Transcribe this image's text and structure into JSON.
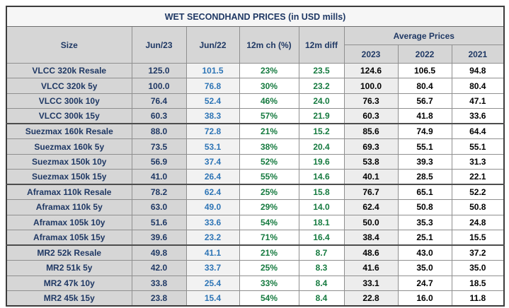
{
  "chart_data": {
    "type": "table",
    "title": "WET SECONDHAND PRICES (in USD mills)",
    "header": {
      "size": "Size",
      "jun23": "Jun/23",
      "jun22": "Jun/22",
      "change_12m": "12m ch (%)",
      "diff_12m": "12m diff",
      "avg_prices_group": "Average Prices",
      "y2023": "2023",
      "y2022": "2022",
      "y2021": "2021"
    },
    "rows": [
      {
        "group": "VLCC",
        "size": "VLCC 320k Resale",
        "jun23": "125.0",
        "jun22": "101.5",
        "ch": "23%",
        "diff": "23.5",
        "a2023": "124.6",
        "a2022": "106.5",
        "a2021": "94.8"
      },
      {
        "group": "VLCC",
        "size": "VLCC 320k 5y",
        "jun23": "100.0",
        "jun22": "76.8",
        "ch": "30%",
        "diff": "23.2",
        "a2023": "100.0",
        "a2022": "80.4",
        "a2021": "80.4"
      },
      {
        "group": "VLCC",
        "size": "VLCC 300k 10y",
        "jun23": "76.4",
        "jun22": "52.4",
        "ch": "46%",
        "diff": "24.0",
        "a2023": "76.3",
        "a2022": "56.7",
        "a2021": "47.1"
      },
      {
        "group": "VLCC",
        "size": "VLCC 300k 15y",
        "jun23": "60.3",
        "jun22": "38.3",
        "ch": "57%",
        "diff": "21.9",
        "a2023": "60.3",
        "a2022": "41.8",
        "a2021": "33.6"
      },
      {
        "group": "Suezmax",
        "size": "Suezmax 160k Resale",
        "jun23": "88.0",
        "jun22": "72.8",
        "ch": "21%",
        "diff": "15.2",
        "a2023": "85.6",
        "a2022": "74.9",
        "a2021": "64.4"
      },
      {
        "group": "Suezmax",
        "size": "Suezmax 160k 5y",
        "jun23": "73.5",
        "jun22": "53.1",
        "ch": "38%",
        "diff": "20.4",
        "a2023": "69.3",
        "a2022": "55.1",
        "a2021": "55.1"
      },
      {
        "group": "Suezmax",
        "size": "Suezmax 150k 10y",
        "jun23": "56.9",
        "jun22": "37.4",
        "ch": "52%",
        "diff": "19.6",
        "a2023": "53.8",
        "a2022": "39.3",
        "a2021": "31.3"
      },
      {
        "group": "Suezmax",
        "size": "Suezmax 150k 15y",
        "jun23": "41.0",
        "jun22": "26.4",
        "ch": "55%",
        "diff": "14.6",
        "a2023": "40.1",
        "a2022": "28.5",
        "a2021": "22.1"
      },
      {
        "group": "Aframax",
        "size": "Aframax 110k Resale",
        "jun23": "78.2",
        "jun22": "62.4",
        "ch": "25%",
        "diff": "15.8",
        "a2023": "76.7",
        "a2022": "65.1",
        "a2021": "52.2"
      },
      {
        "group": "Aframax",
        "size": "Aframax 110k 5y",
        "jun23": "63.0",
        "jun22": "49.0",
        "ch": "29%",
        "diff": "14.0",
        "a2023": "62.4",
        "a2022": "50.8",
        "a2021": "50.8"
      },
      {
        "group": "Aframax",
        "size": "Aframax 105k 10y",
        "jun23": "51.6",
        "jun22": "33.6",
        "ch": "54%",
        "diff": "18.1",
        "a2023": "50.0",
        "a2022": "35.3",
        "a2021": "24.8"
      },
      {
        "group": "Aframax",
        "size": "Aframax 105k 15y",
        "jun23": "39.6",
        "jun22": "23.2",
        "ch": "71%",
        "diff": "16.4",
        "a2023": "38.4",
        "a2022": "25.1",
        "a2021": "15.5"
      },
      {
        "group": "MR2",
        "size": "MR2 52k Resale",
        "jun23": "49.8",
        "jun22": "41.1",
        "ch": "21%",
        "diff": "8.7",
        "a2023": "48.6",
        "a2022": "43.0",
        "a2021": "37.2"
      },
      {
        "group": "MR2",
        "size": "MR2 51k 5y",
        "jun23": "42.0",
        "jun22": "33.7",
        "ch": "25%",
        "diff": "8.3",
        "a2023": "41.6",
        "a2022": "35.0",
        "a2021": "35.0"
      },
      {
        "group": "MR2",
        "size": "MR2 47k 10y",
        "jun23": "33.8",
        "jun22": "25.4",
        "ch": "33%",
        "diff": "8.4",
        "a2023": "33.1",
        "a2022": "24.7",
        "a2021": "18.5"
      },
      {
        "group": "MR2",
        "size": "MR2 45k 15y",
        "jun23": "23.8",
        "jun22": "15.4",
        "ch": "54%",
        "diff": "8.4",
        "a2023": "22.8",
        "a2022": "16.0",
        "a2021": "11.8"
      }
    ],
    "layout": {
      "column_keys": [
        "size",
        "jun23",
        "jun22",
        "ch",
        "diff",
        "a2023",
        "a2022",
        "a2021"
      ],
      "avg_prices_spans": [
        "y2023",
        "y2022",
        "y2021"
      ]
    },
    "colors": {
      "navy_text": "#1F3864",
      "blue_text": "#2E75B6",
      "green_text": "#157A3F",
      "black_text": "#000000",
      "header_bg": "#D6D6D6",
      "shaded_column_bg": "#F2F2F2",
      "avg2023_column_bg": "#EDEDED",
      "white_bg": "#FFFFFF",
      "title_bg": "#F6F6F6",
      "border_thin": "#8F8F8F",
      "border_thick": "#3C3C3C"
    }
  }
}
